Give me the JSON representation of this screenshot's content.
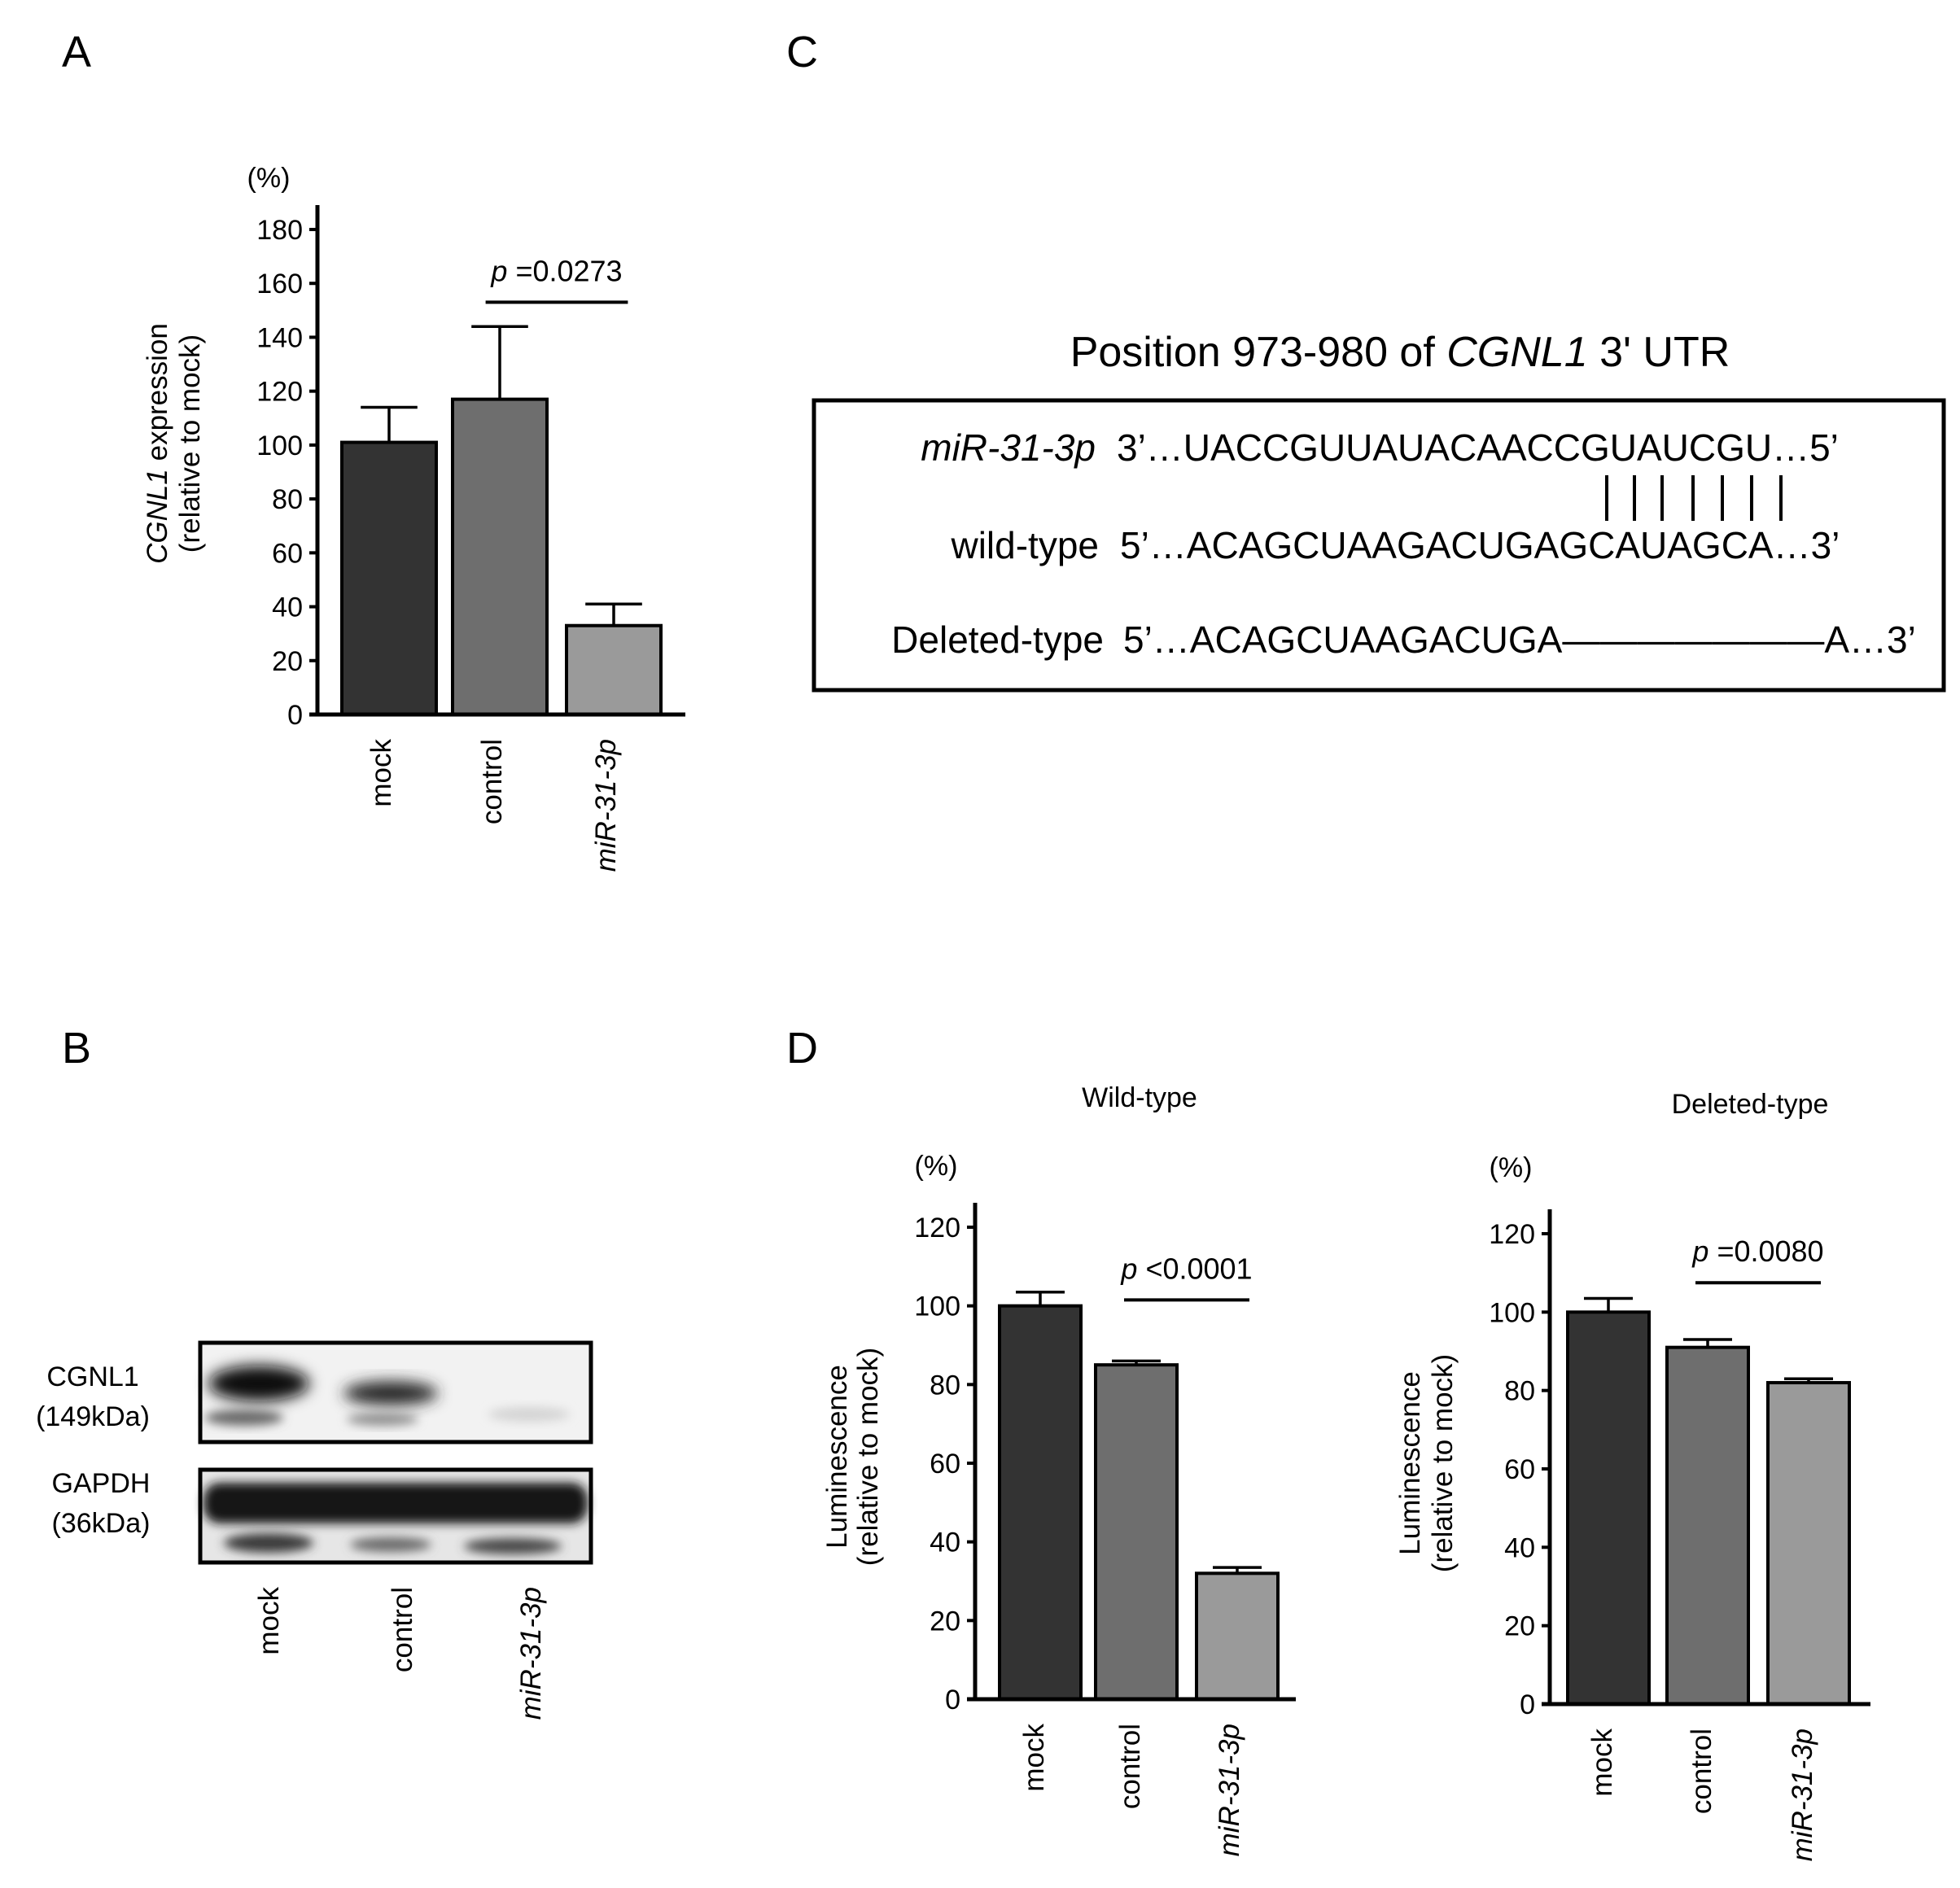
{
  "panels": {
    "A": "A",
    "B": "B",
    "C": "C",
    "D": "D"
  },
  "chart_data": [
    {
      "id": "A",
      "type": "bar",
      "title": "",
      "unit": "(%)",
      "ylabel_italic": "CGNL1",
      "ylabel_rest": " expression",
      "ylabel2": "(relative to mock)",
      "ylim": [
        0,
        180
      ],
      "yticks": [
        0,
        20,
        40,
        60,
        80,
        100,
        120,
        140,
        160,
        180
      ],
      "categories": [
        "mock",
        "control",
        "miR-31-3p"
      ],
      "italic_categories": [
        false,
        false,
        true
      ],
      "values": [
        101,
        117,
        33
      ],
      "errors": [
        13,
        27,
        8
      ],
      "colors": [
        "#333333",
        "#6e6e6e",
        "#9a9a9a"
      ],
      "pvalue": {
        "p": "p",
        "text": " =0.0273",
        "from": 1,
        "to": 2,
        "y": 153
      }
    },
    {
      "id": "D1",
      "type": "bar",
      "title": "Wild-type",
      "unit": "(%)",
      "ylabel": "Luminescence",
      "ylabel2": "(relative to mock)",
      "ylim": [
        0,
        120
      ],
      "yticks": [
        0,
        20,
        40,
        60,
        80,
        100,
        120
      ],
      "categories": [
        "mock",
        "control",
        "miR-31-3p"
      ],
      "italic_categories": [
        false,
        false,
        true
      ],
      "values": [
        100,
        85,
        32
      ],
      "errors": [
        3.5,
        1,
        1.5
      ],
      "colors": [
        "#333333",
        "#6e6e6e",
        "#9a9a9a"
      ],
      "pvalue": {
        "p": "p",
        "text": " <0.0001",
        "from": 1,
        "to": 2,
        "y": 101.5
      }
    },
    {
      "id": "D2",
      "type": "bar",
      "title": "Deleted-type",
      "unit": "(%)",
      "ylabel": "Luminescence",
      "ylabel2": "(relative to mock)",
      "ylim": [
        0,
        120
      ],
      "yticks": [
        0,
        20,
        40,
        60,
        80,
        100,
        120
      ],
      "categories": [
        "mock",
        "control",
        "miR-31-3p"
      ],
      "italic_categories": [
        false,
        false,
        true
      ],
      "values": [
        100,
        91,
        82
      ],
      "errors": [
        3.5,
        2,
        1
      ],
      "colors": [
        "#333333",
        "#6e6e6e",
        "#9a9a9a"
      ],
      "pvalue": {
        "p": "p",
        "text": " =0.0080",
        "from": 1,
        "to": 2,
        "y": 107.5
      }
    }
  ],
  "blot": {
    "rows": [
      {
        "label1": "CGNL1",
        "label2": "(149kDa)"
      },
      {
        "label1": "GAPDH",
        "label2": "(36kDa)"
      }
    ],
    "lanes": [
      "mock",
      "control",
      "miR-31-3p"
    ]
  },
  "alignment": {
    "title_pre": "Position 973-980 of ",
    "title_italic": "CGNL1",
    "title_post": " 3' UTR",
    "rows": [
      {
        "label": "miR-31-3p",
        "italic": true,
        "seq": "3’…UACCGUUAUACAACCGUAUCGU…5’"
      },
      {
        "label": "wild-type",
        "italic": false,
        "seq": "5’…ACAGCUAAGACUGAGCAUAGCA…3’"
      },
      {
        "label": "Deleted-type",
        "italic": false,
        "seq": "5’…ACAGCUAAGACUGA———————A…3’"
      }
    ]
  }
}
